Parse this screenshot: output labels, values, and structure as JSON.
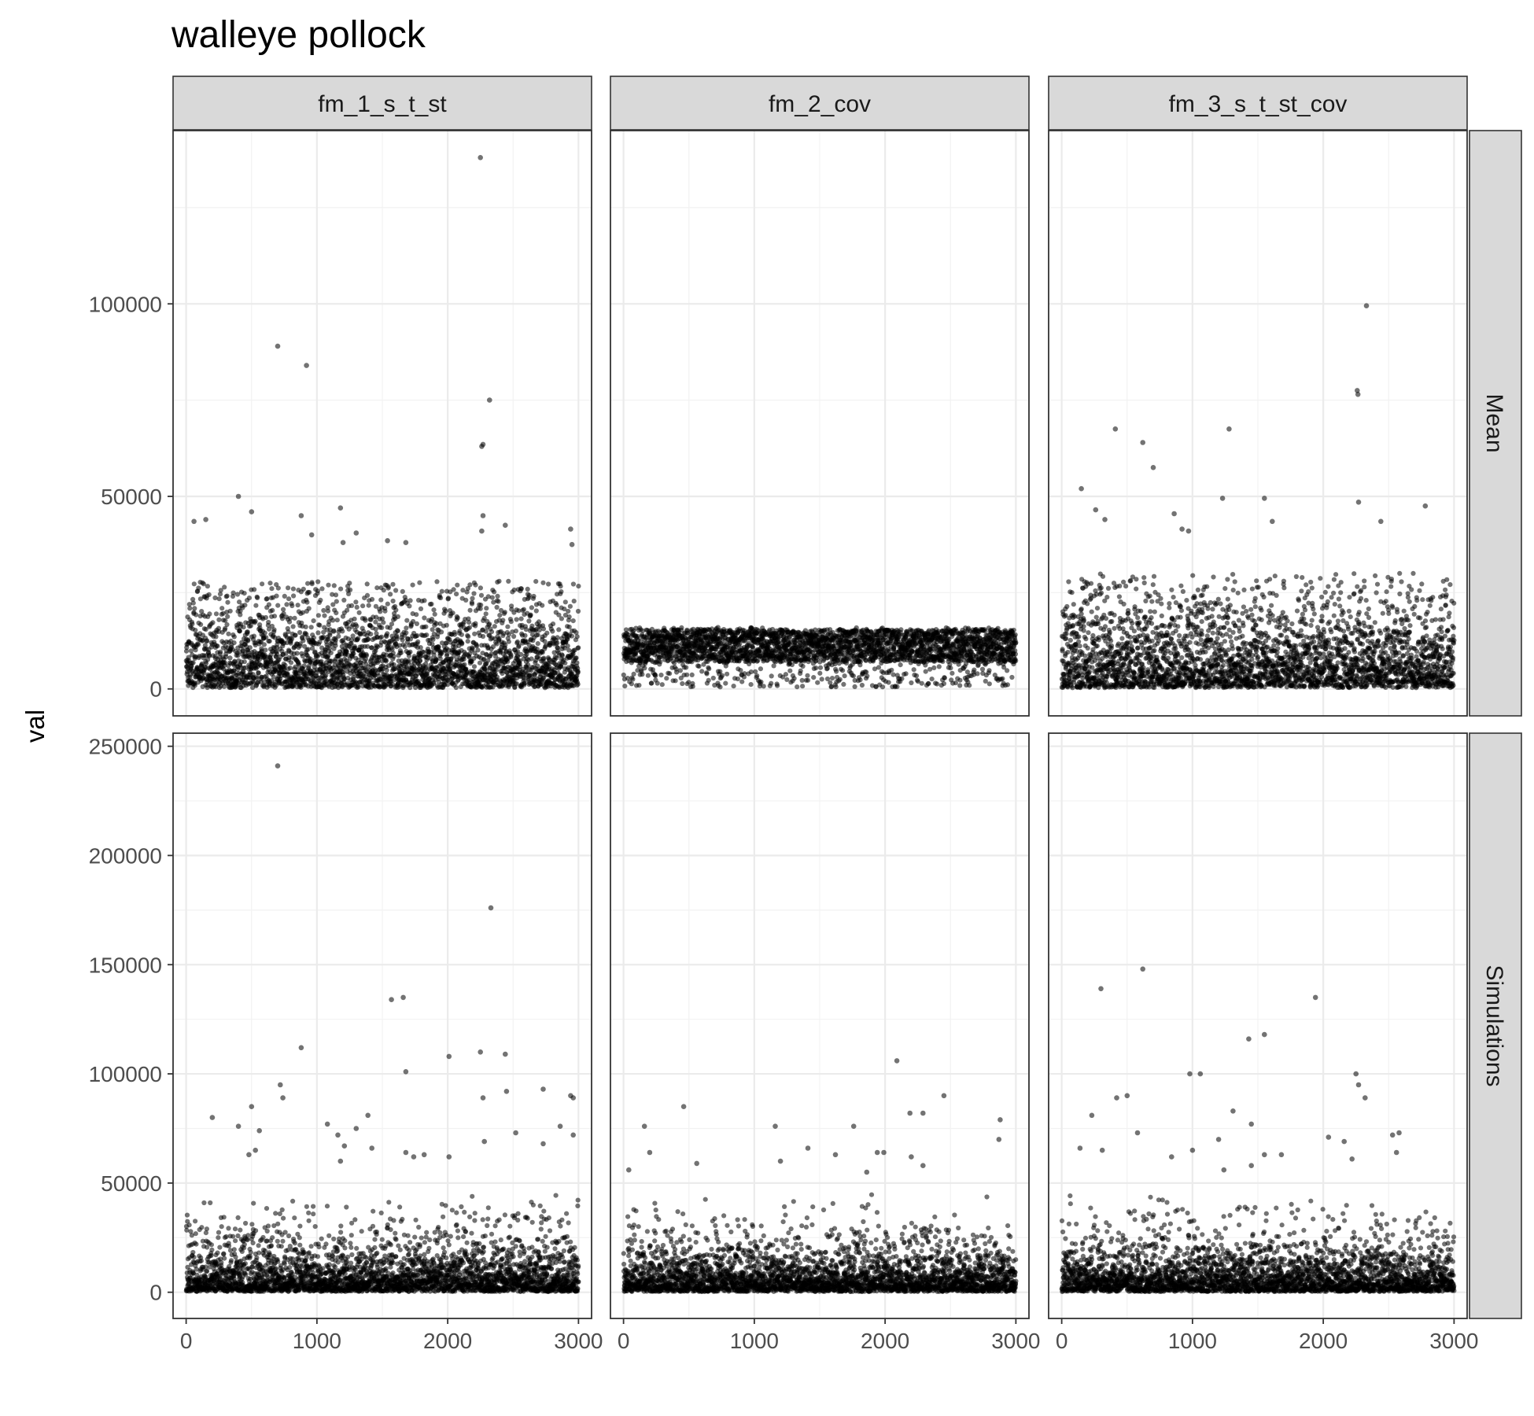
{
  "chart_data": {
    "type": "scatter",
    "title": "walleye pollock",
    "xlabel": "",
    "ylabel": "val",
    "columns": [
      "fm_1_s_t_st",
      "fm_2_cov",
      "fm_3_s_t_st_cov"
    ],
    "rows": [
      "Mean",
      "Simulations"
    ],
    "xlim": [
      -100,
      3100
    ],
    "xticks": [
      0,
      1000,
      2000,
      3000
    ],
    "n_points": 3000,
    "point_color": "#000000",
    "point_opacity": 0.55,
    "grid": true,
    "facet_strip_color": "#d9d9d9",
    "row_scales": [
      {
        "row": "Mean",
        "ylim": [
          -7000,
          145000
        ],
        "yticks": [
          0,
          50000,
          100000
        ],
        "ytick_labels": [
          "0",
          "50000",
          "100000"
        ]
      },
      {
        "row": "Simulations",
        "ylim": [
          -12000,
          256000
        ],
        "yticks": [
          0,
          50000,
          100000,
          150000,
          200000,
          250000
        ],
        "ytick_labels": [
          "0",
          "50000",
          "100000",
          "150000",
          "200000",
          "250000"
        ]
      }
    ],
    "panels": [
      {
        "column": "fm_1_s_t_st",
        "row": "Mean",
        "bulk": {
          "dist": "exp",
          "median": 8000,
          "cap": 28000
        },
        "outliers": [
          [
            2250,
            138000
          ],
          [
            700,
            89000
          ],
          [
            920,
            84000
          ],
          [
            2320,
            75000
          ],
          [
            2260,
            63000
          ],
          [
            2270,
            63500
          ],
          [
            400,
            50000
          ],
          [
            500,
            46000
          ],
          [
            880,
            45000
          ],
          [
            1180,
            47000
          ],
          [
            2270,
            45000
          ],
          [
            60,
            43500
          ],
          [
            150,
            44000
          ],
          [
            960,
            40000
          ],
          [
            1300,
            40500
          ],
          [
            2440,
            42500
          ],
          [
            2940,
            41500
          ],
          [
            2950,
            37500
          ],
          [
            1680,
            38000
          ],
          [
            1540,
            38500
          ],
          [
            1200,
            38000
          ],
          [
            2260,
            41000
          ]
        ]
      },
      {
        "column": "fm_2_cov",
        "row": "Mean",
        "bulk": {
          "dist": "band",
          "min": 500,
          "max": 16000,
          "dense_min": 7000,
          "dense_max": 15500
        },
        "outliers": []
      },
      {
        "column": "fm_3_s_t_st_cov",
        "row": "Mean",
        "bulk": {
          "dist": "exp",
          "median": 7000,
          "cap": 30000
        },
        "outliers": [
          [
            2330,
            99500
          ],
          [
            2260,
            77500
          ],
          [
            2265,
            76500
          ],
          [
            410,
            67500
          ],
          [
            1280,
            67500
          ],
          [
            620,
            64000
          ],
          [
            700,
            57500
          ],
          [
            150,
            52000
          ],
          [
            1230,
            49500
          ],
          [
            1550,
            49500
          ],
          [
            2270,
            48500
          ],
          [
            2780,
            47500
          ],
          [
            260,
            46500
          ],
          [
            860,
            45500
          ],
          [
            330,
            44000
          ],
          [
            2440,
            43500
          ],
          [
            920,
            41500
          ],
          [
            1610,
            43500
          ],
          [
            970,
            41000
          ]
        ]
      },
      {
        "column": "fm_1_s_t_st",
        "row": "Simulations",
        "bulk": {
          "dist": "exp",
          "median": 6000,
          "cap": 45000
        },
        "outliers": [
          [
            700,
            241000
          ],
          [
            2330,
            176000
          ],
          [
            1660,
            135000
          ],
          [
            1570,
            134000
          ],
          [
            880,
            112000
          ],
          [
            2250,
            110000
          ],
          [
            2440,
            109000
          ],
          [
            2010,
            108000
          ],
          [
            1680,
            101000
          ],
          [
            720,
            95000
          ],
          [
            2730,
            93000
          ],
          [
            2450,
            92000
          ],
          [
            2940,
            90000
          ],
          [
            2960,
            89000
          ],
          [
            740,
            89000
          ],
          [
            2270,
            89000
          ],
          [
            500,
            85000
          ],
          [
            1390,
            81000
          ],
          [
            200,
            80000
          ],
          [
            1080,
            77000
          ],
          [
            2860,
            76000
          ],
          [
            400,
            76000
          ],
          [
            1300,
            75000
          ],
          [
            560,
            74000
          ],
          [
            2520,
            73000
          ],
          [
            2960,
            72000
          ],
          [
            1160,
            72000
          ],
          [
            2280,
            69000
          ],
          [
            2730,
            68000
          ],
          [
            1210,
            67000
          ],
          [
            1420,
            66000
          ],
          [
            530,
            65000
          ],
          [
            480,
            63000
          ],
          [
            1680,
            64000
          ],
          [
            1740,
            62000
          ],
          [
            2010,
            62000
          ],
          [
            1820,
            63000
          ],
          [
            1180,
            60000
          ]
        ]
      },
      {
        "column": "fm_2_cov",
        "row": "Simulations",
        "bulk": {
          "dist": "exp",
          "median": 5500,
          "cap": 45000
        },
        "outliers": [
          [
            2090,
            106000
          ],
          [
            460,
            85000
          ],
          [
            2450,
            90000
          ],
          [
            2190,
            82000
          ],
          [
            2290,
            82000
          ],
          [
            2880,
            79000
          ],
          [
            160,
            76000
          ],
          [
            1160,
            76000
          ],
          [
            1760,
            76000
          ],
          [
            2870,
            70000
          ],
          [
            1410,
            66000
          ],
          [
            200,
            64000
          ],
          [
            1620,
            63000
          ],
          [
            1940,
            64000
          ],
          [
            2200,
            62000
          ],
          [
            1990,
            64000
          ],
          [
            560,
            59000
          ],
          [
            2290,
            58000
          ],
          [
            40,
            56000
          ],
          [
            1860,
            55000
          ],
          [
            1200,
            60000
          ]
        ]
      },
      {
        "column": "fm_3_s_t_st_cov",
        "row": "Simulations",
        "bulk": {
          "dist": "exp",
          "median": 5500,
          "cap": 45000
        },
        "outliers": [
          [
            620,
            148000
          ],
          [
            300,
            139000
          ],
          [
            1940,
            135000
          ],
          [
            1550,
            118000
          ],
          [
            1430,
            116000
          ],
          [
            980,
            100000
          ],
          [
            1060,
            100000
          ],
          [
            2250,
            100000
          ],
          [
            2270,
            95000
          ],
          [
            2320,
            89000
          ],
          [
            500,
            90000
          ],
          [
            420,
            89000
          ],
          [
            1310,
            83000
          ],
          [
            230,
            81000
          ],
          [
            1450,
            77000
          ],
          [
            2530,
            72000
          ],
          [
            2580,
            73000
          ],
          [
            2040,
            71000
          ],
          [
            580,
            73000
          ],
          [
            1200,
            70000
          ],
          [
            2160,
            69000
          ],
          [
            2560,
            64000
          ],
          [
            140,
            66000
          ],
          [
            310,
            65000
          ],
          [
            1000,
            65000
          ],
          [
            1550,
            63000
          ],
          [
            840,
            62000
          ],
          [
            2220,
            61000
          ],
          [
            1680,
            63000
          ],
          [
            1450,
            58000
          ],
          [
            1240,
            56000
          ]
        ]
      }
    ]
  }
}
